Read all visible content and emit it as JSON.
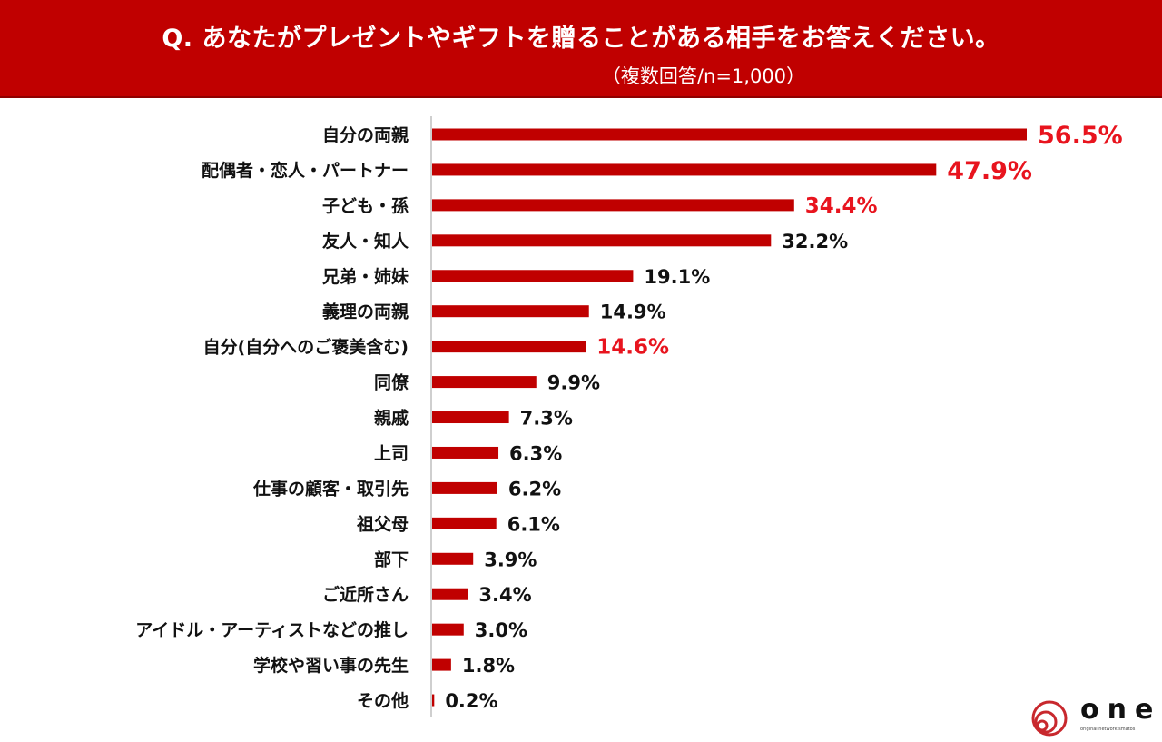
{
  "header": {
    "title": "Q. あなたがプレゼントやギフトを贈ることがある相手をお答えください。",
    "subtitle": "（複数回答/n=1,000）"
  },
  "logo": {
    "text": "one",
    "tagline": "original network smatos"
  },
  "chart_data": {
    "type": "bar",
    "orientation": "horizontal",
    "title": "Q. あなたがプレゼントやギフトを贈ることがある相手をお答えください。",
    "subtitle": "（複数回答/n=1,000）",
    "unit": "%",
    "categories": [
      "自分の両親",
      "配偶者・恋人・パートナー",
      "子ども・孫",
      "友人・知人",
      "兄弟・姉妹",
      "義理の両親",
      "自分(自分へのご褒美含む)",
      "同僚",
      "親戚",
      "上司",
      "仕事の顧客・取引先",
      "祖父母",
      "部下",
      "ご近所さん",
      "アイドル・アーティストなどの推し",
      "学校や習い事の先生",
      "その他"
    ],
    "values": [
      56.5,
      47.9,
      34.4,
      32.2,
      19.1,
      14.9,
      14.6,
      9.9,
      7.3,
      6.3,
      6.2,
      6.1,
      3.9,
      3.4,
      3.0,
      1.8,
      0.2
    ],
    "labels": [
      "56.5%",
      "47.9%",
      "34.4%",
      "32.2%",
      "19.1%",
      "14.9%",
      "14.6%",
      "9.9%",
      "7.3%",
      "6.3%",
      "6.2%",
      "6.1%",
      "3.9%",
      "3.4%",
      "3.0%",
      "1.8%",
      "0.2%"
    ],
    "highlighted": [
      0,
      1,
      2,
      6
    ],
    "xlim": [
      0,
      56.5
    ],
    "grid": false,
    "colors": {
      "bar": "#c00000",
      "highlight_label": "#e8141e",
      "label": "#111111",
      "header": "#c00000"
    }
  }
}
